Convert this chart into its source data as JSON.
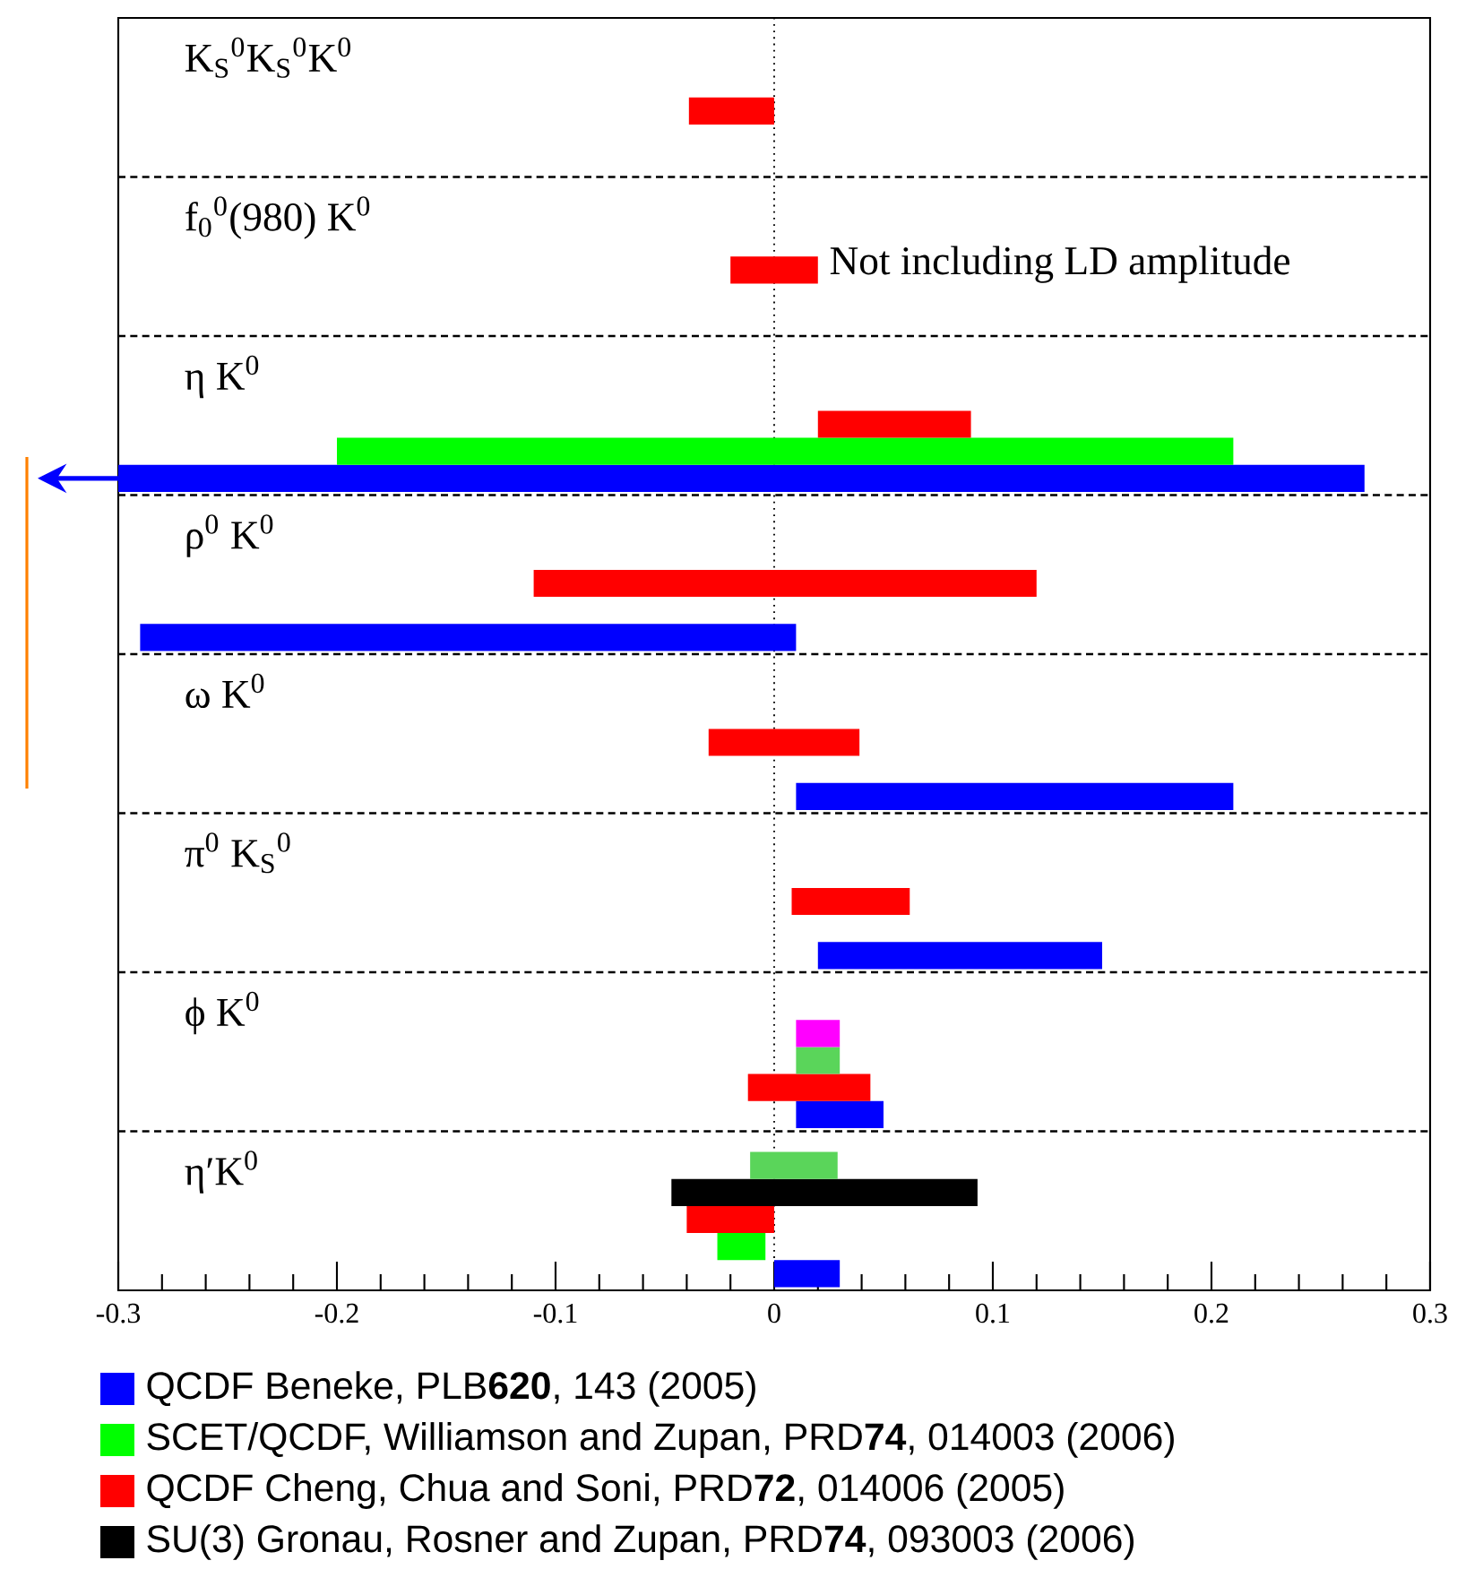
{
  "chart_data": {
    "type": "bar",
    "orientation": "horizontal",
    "categories": [
      "K$_{S}$$^{0}$K$_{S}$$^{0}$K$^{0}$",
      "f$_{0}$$^{0}$(980) K$^{0}$",
      "η K$^{0}$",
      "ρ$^{0}$ K$^{0}$",
      "ω K$^{0}$",
      "π$^{0}$ K$_{S}$$^{0}$",
      "ϕ K$^{0}$",
      "η′K$^{0}$"
    ],
    "series": [
      {
        "name": "QCDF Beneke, PLB**620**, 143 (2005)",
        "color": "#0000ff",
        "base": [
          null,
          null,
          -0.3,
          -0.29,
          0.01,
          0.02,
          0.01,
          0.0
        ],
        "values": [
          null,
          null,
          0.57,
          0.3,
          0.2,
          0.13,
          0.04,
          0.03
        ]
      },
      {
        "color": "#00ff00",
        "base": [
          null,
          null,
          null,
          null,
          null,
          null,
          null,
          -0.026
        ],
        "values": [
          null,
          null,
          null,
          null,
          null,
          null,
          null,
          0.022
        ]
      },
      {
        "name": "SCET/QCDF, Williamson and Zupan, PRD**74**, 014003 (2006)",
        "color": "#00ff00",
        "base": [
          null,
          null,
          -0.2,
          null,
          null,
          null,
          null,
          null
        ],
        "values": [
          null,
          null,
          0.41,
          null,
          null,
          null,
          null,
          null
        ]
      },
      {
        "name": "QCDF Cheng, Chua and Soni, PRD**72**, 014006 (2005)",
        "color": "#ff0000",
        "base": [
          -0.039,
          -0.02,
          0.02,
          -0.11,
          -0.03,
          0.008,
          -0.012,
          -0.04
        ],
        "values": [
          0.039,
          0.04,
          0.07,
          0.23,
          0.069,
          0.054,
          0.056,
          0.04
        ]
      },
      {
        "name": "SU(3) Gronau, Rosner and Zupan, PRD**74**, 093003 (2006)",
        "color": "#000000",
        "base": [
          null,
          null,
          null,
          null,
          null,
          null,
          null,
          -0.047
        ],
        "values": [
          null,
          null,
          null,
          null,
          null,
          null,
          null,
          0.14
        ]
      },
      {
        "color": "#5ad55a",
        "base": [
          null,
          null,
          null,
          null,
          null,
          null,
          0.01,
          -0.011
        ],
        "values": [
          null,
          null,
          null,
          null,
          null,
          null,
          0.02,
          0.04
        ]
      },
      {
        "color": "#ff00ff",
        "base": [
          null,
          null,
          null,
          null,
          null,
          null,
          0.01,
          null
        ],
        "values": [
          null,
          null,
          null,
          null,
          null,
          null,
          0.02,
          null
        ]
      }
    ],
    "xlim": [
      -0.3,
      0.3
    ],
    "xticks": [
      -0.3,
      -0.2,
      -0.1,
      0,
      0.1,
      0.2,
      0.3
    ],
    "ref_lines": [
      {
        "axis": "x",
        "value": 0,
        "line_style": "dotted"
      }
    ],
    "annotations": [
      "Not including LD amplitude"
    ],
    "legend": "bottom"
  }
}
